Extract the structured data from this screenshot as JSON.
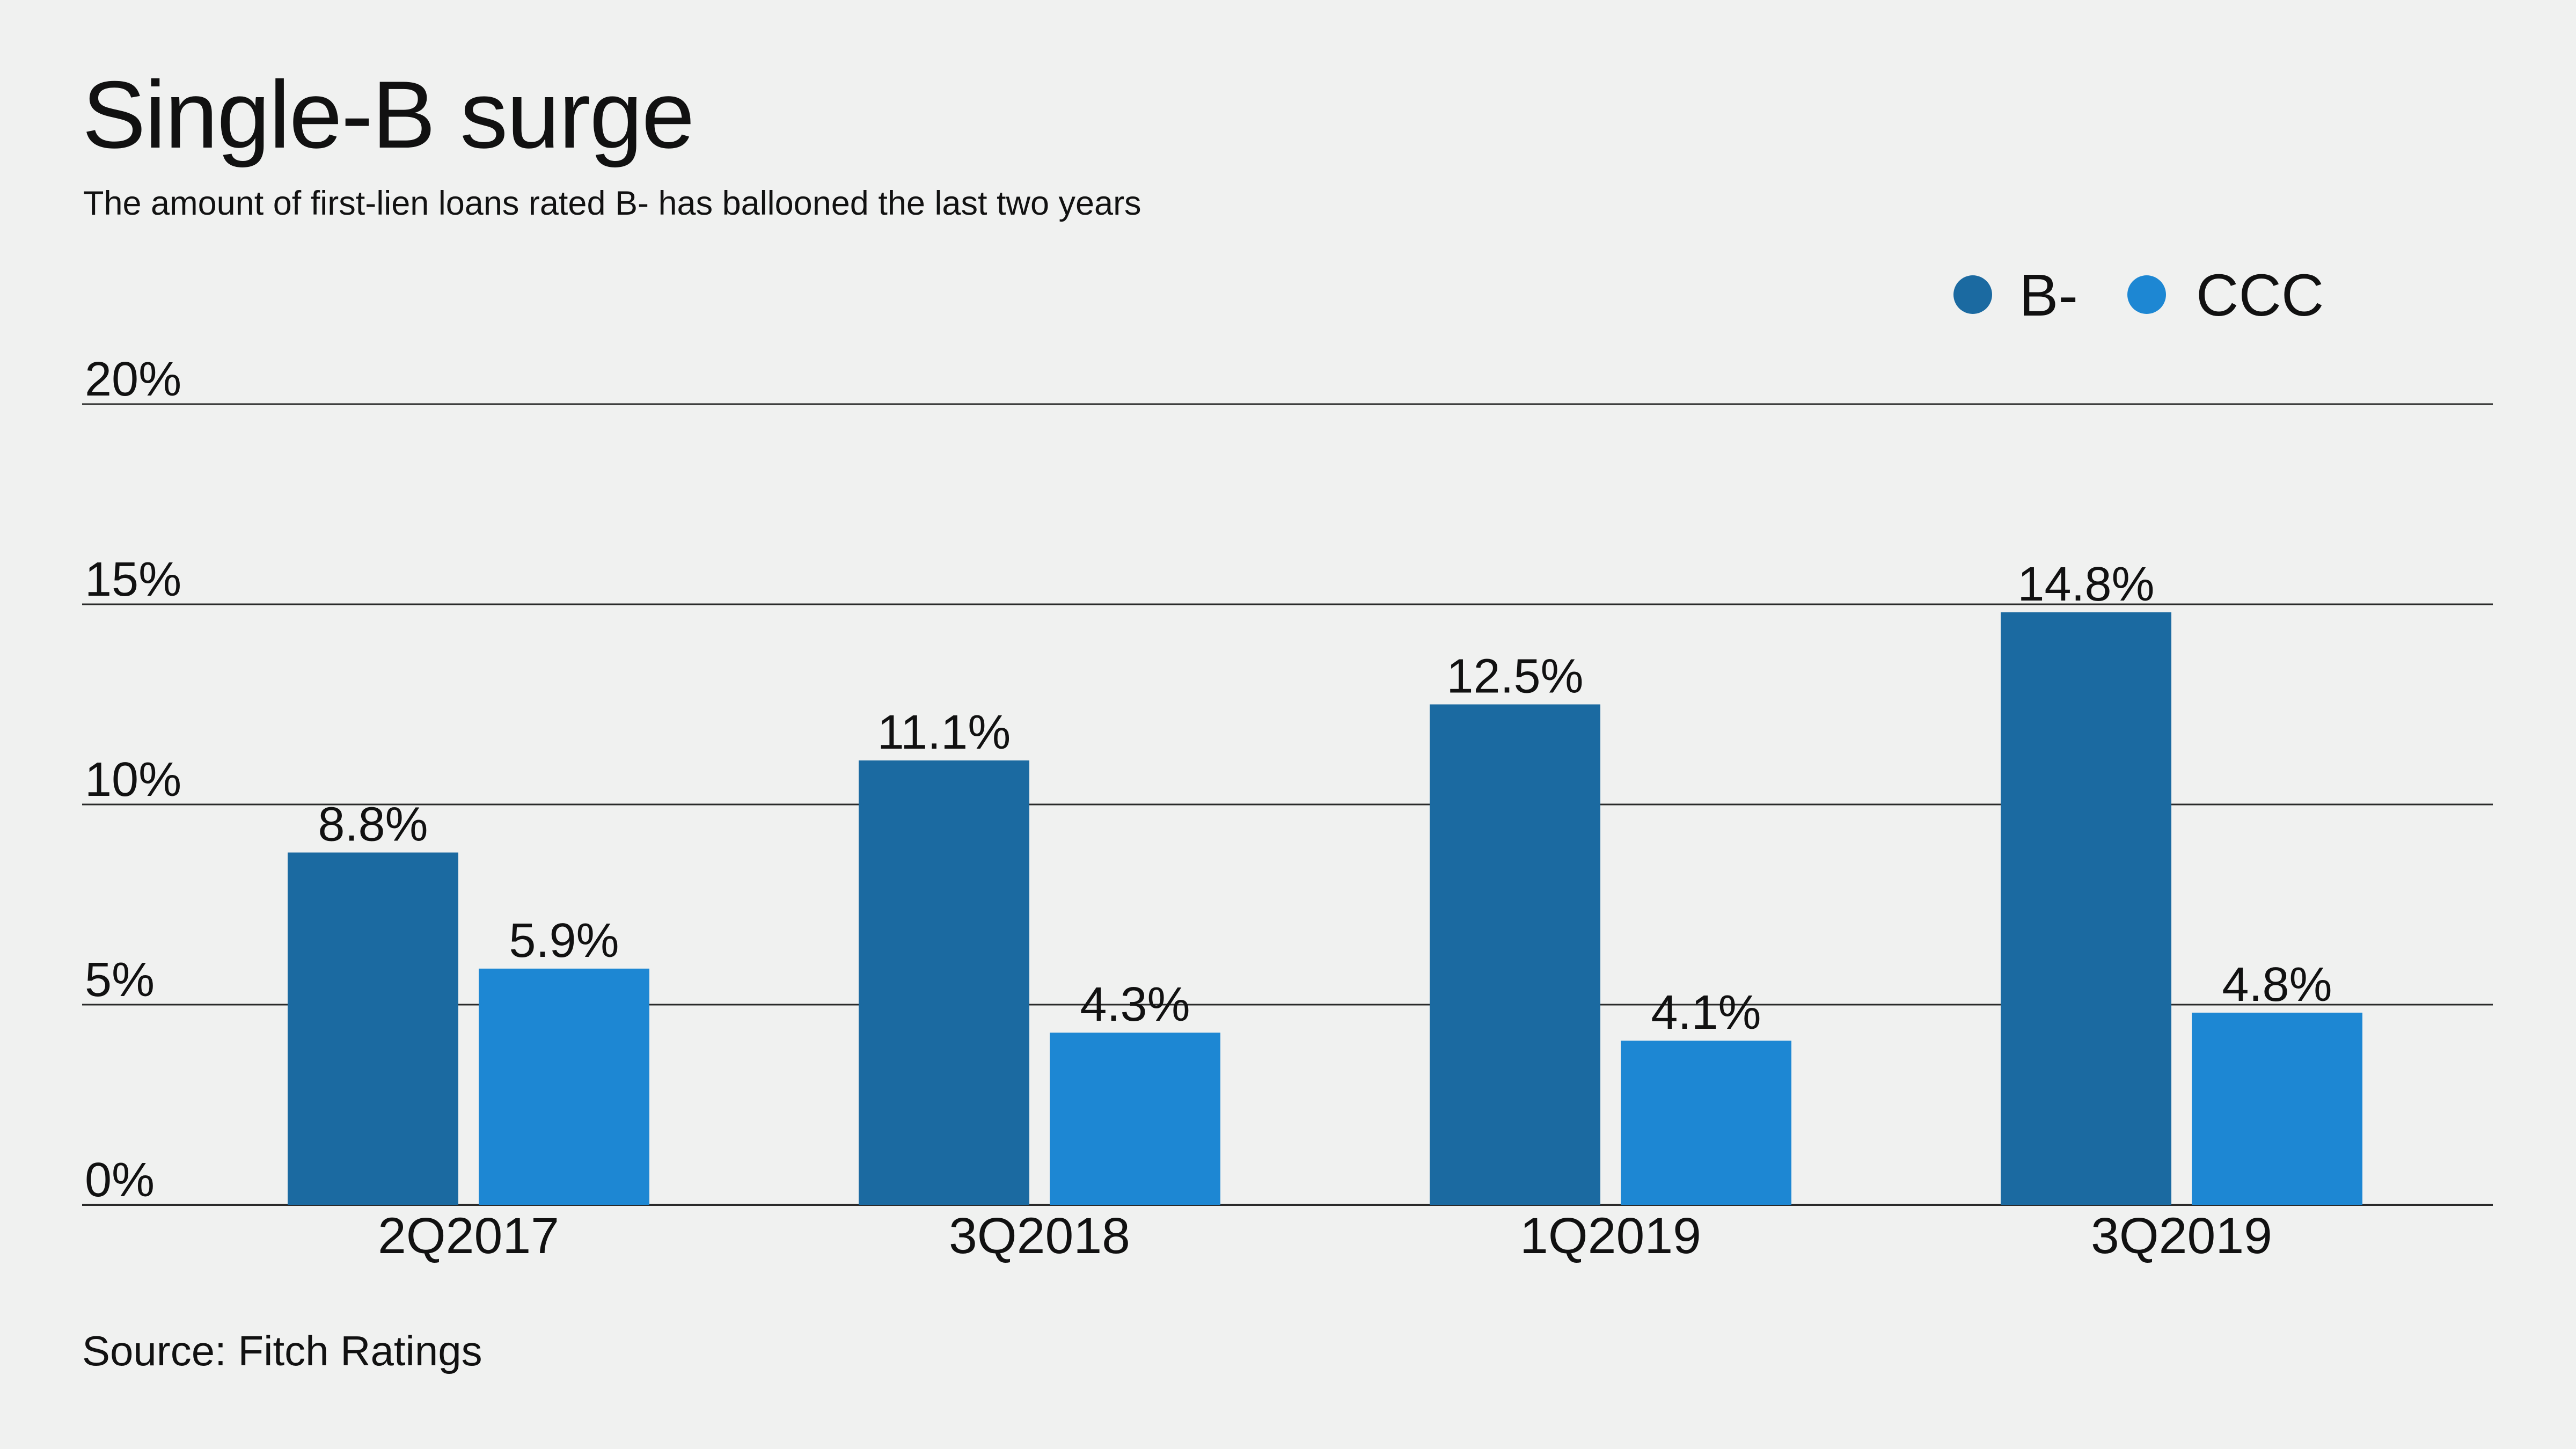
{
  "title": "Single-B surge",
  "subtitle": "The amount of first-lien loans rated B- has ballooned the last two years",
  "source": "Source: Fitch Ratings",
  "colors": {
    "background": "#f0f1f0",
    "b_minus": "#1b6aa1",
    "ccc": "#1d87d3",
    "gridline": "#2a2a2a",
    "text": "#111111"
  },
  "chart_data": {
    "type": "bar",
    "categories": [
      "2Q2017",
      "3Q2018",
      "1Q2019",
      "3Q2019"
    ],
    "series": [
      {
        "name": "B-",
        "values": [
          8.8,
          11.1,
          12.5,
          14.8
        ],
        "labels": [
          "8.8%",
          "11.1%",
          "12.5%",
          "14.8%"
        ]
      },
      {
        "name": "CCC",
        "values": [
          5.9,
          4.3,
          4.1,
          4.8
        ],
        "labels": [
          "5.9%",
          "4.3%",
          "4.1%",
          "4.8%"
        ]
      }
    ],
    "ylim": [
      0,
      20
    ],
    "yticks": [
      0,
      5,
      10,
      15,
      20
    ],
    "ytick_labels": [
      "0%",
      "5%",
      "10%",
      "15%",
      "20%"
    ],
    "xlabel": "",
    "ylabel": "",
    "grid": true,
    "legend_position": "top-right"
  }
}
